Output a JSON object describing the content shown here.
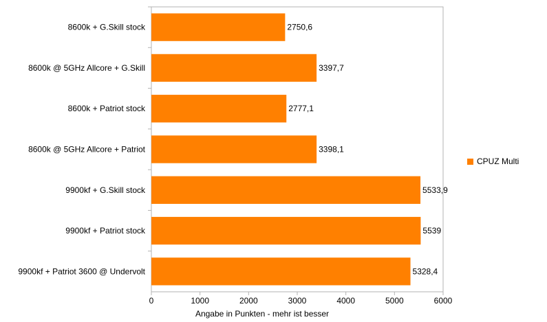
{
  "chart_data": {
    "type": "bar",
    "orientation": "horizontal",
    "categories": [
      "8600k + G.Skill stock",
      "8600k @ 5GHz Allcore + G.Skill",
      "8600k + Patriot stock",
      "8600k @ 5GHz Allcore + Patriot",
      "9900kf + G.Skill stock",
      "9900kf + Patriot stock",
      "9900kf + Patriot 3600 @ Undervolt"
    ],
    "series": [
      {
        "name": "CPUZ Multi",
        "color": "#ff8000",
        "values": [
          2750.6,
          3397.7,
          2777.1,
          3398.1,
          5533.9,
          5539,
          5328.4
        ],
        "value_labels": [
          "2750,6",
          "3397,7",
          "2777,1",
          "3398,1",
          "5533,9",
          "5539",
          "5328,4"
        ]
      }
    ],
    "xlabel": "Angabe in Punkten - mehr ist besser",
    "ylabel": "",
    "xlim": [
      0,
      6000
    ],
    "xticks": [
      0,
      1000,
      2000,
      3000,
      4000,
      5000,
      6000
    ],
    "grid": false,
    "legend": "right"
  }
}
